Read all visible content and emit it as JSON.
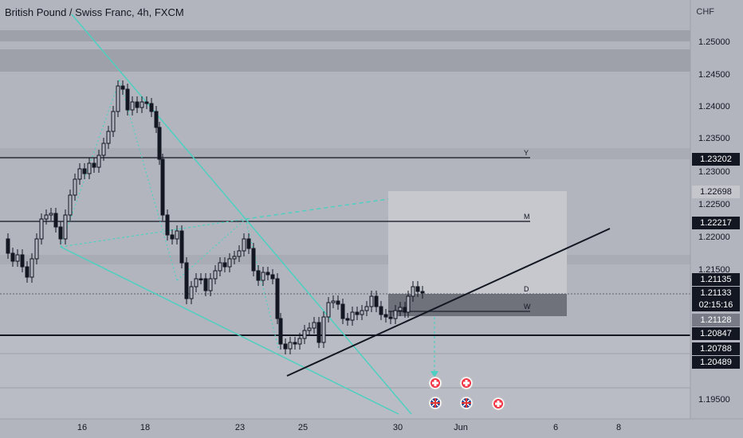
{
  "header": {
    "title": "British Pound / Swiss Franc, 4h, FXCM",
    "currency": "CHF"
  },
  "price_axis": {
    "ticks": [
      "1.25000",
      "1.24500",
      "1.24000",
      "1.23500",
      "1.23000",
      "1.22500",
      "1.22000",
      "1.21500",
      "1.19500"
    ]
  },
  "time_axis": {
    "ticks": [
      "16",
      "18",
      "23",
      "25",
      "30",
      "Jun",
      "6",
      "8"
    ]
  },
  "level_labels": {
    "yearly": "Y",
    "monthly": "M",
    "daily": "D",
    "weekly": "W"
  },
  "badges": {
    "yearly_level": "1.23202",
    "upper_box": "1.22698",
    "monthly_level": "1.22217",
    "last_price": "1.21135",
    "current_price": "1.21133",
    "countdown": "02:15:16",
    "weekly_level": "1.21128",
    "support_level": "1.20847",
    "lower_box": "1.20788",
    "low_level": "1.20489"
  },
  "event_icons": [
    "flag-uk-icon",
    "flag-swiss-icon"
  ],
  "colors": {
    "background": "#b2b5be",
    "candle": "#131722",
    "trend_line": "#4dd0c1",
    "level_line": "#2a2e39"
  }
}
